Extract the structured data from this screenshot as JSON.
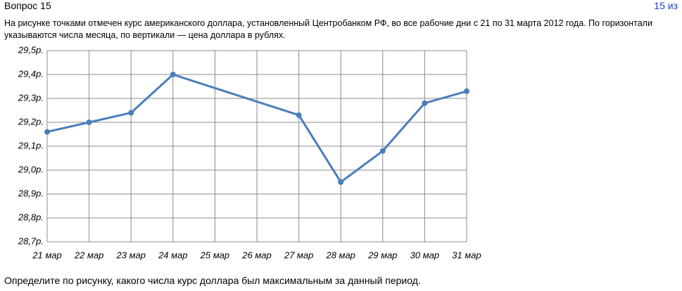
{
  "header": {
    "title": "Вопрос 15",
    "counter": "15 из"
  },
  "question": "На рисунке точками отмечен курс американского доллара, установленный Центробанком РФ, во все рабочие дни с 21 по 31 марта 2012 года. По горизонтали указываются числа месяца, по вертикали — цена доллара в рублях.",
  "chart_data": {
    "type": "line",
    "x": [
      21,
      22,
      23,
      24,
      27,
      28,
      29,
      30,
      31
    ],
    "values": [
      29.16,
      29.2,
      29.24,
      29.4,
      29.23,
      28.95,
      29.08,
      29.28,
      29.33
    ],
    "color": "#4a7ebb",
    "xlim": [
      21,
      31
    ],
    "xticks": [
      {
        "value": 21,
        "label": "21 мар"
      },
      {
        "value": 22,
        "label": "22 мар"
      },
      {
        "value": 23,
        "label": "23 мар"
      },
      {
        "value": 24,
        "label": "24 мар"
      },
      {
        "value": 25,
        "label": "25 мар"
      },
      {
        "value": 26,
        "label": "26 мар"
      },
      {
        "value": 27,
        "label": "27 мар"
      },
      {
        "value": 28,
        "label": "28 мар"
      },
      {
        "value": 29,
        "label": "29 мар"
      },
      {
        "value": 30,
        "label": "30 мар"
      },
      {
        "value": 31,
        "label": "31 мар"
      }
    ],
    "ylim": [
      28.7,
      29.5
    ],
    "yticks": [
      {
        "value": 28.7,
        "label": "28,7р."
      },
      {
        "value": 28.8,
        "label": "28,8р."
      },
      {
        "value": 28.9,
        "label": "28,9р."
      },
      {
        "value": 29.0,
        "label": "29,0р."
      },
      {
        "value": 29.1,
        "label": "29,1р."
      },
      {
        "value": 29.2,
        "label": "29,2р."
      },
      {
        "value": 29.3,
        "label": "29,3р."
      },
      {
        "value": 29.4,
        "label": "29,4р."
      },
      {
        "value": 29.5,
        "label": "29,5р."
      }
    ],
    "grid": true
  },
  "task": "Определите по рисунку, какого числа курс доллара был максимальным за данный период."
}
